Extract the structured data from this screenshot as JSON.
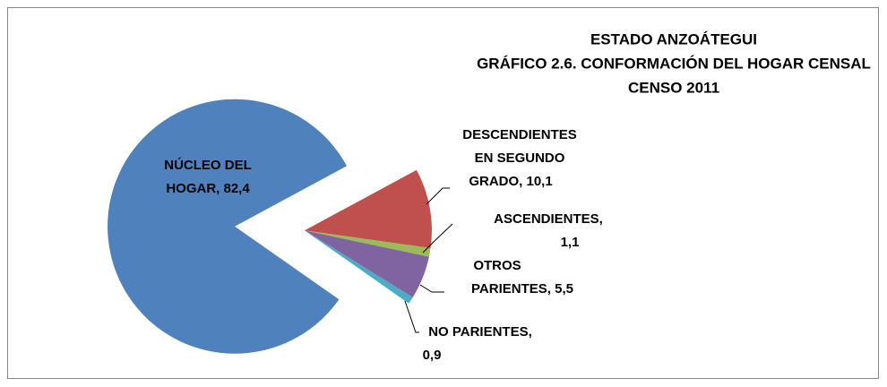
{
  "chart_data": {
    "type": "pie",
    "title": [
      "ESTADO ANZOÁTEGUI",
      "GRÁFICO 2.6. CONFORMACIÓN DEL HOGAR CENSAL",
      "CENSO 2011"
    ],
    "categories": [
      "NÚCLEO DEL HOGAR",
      "DESCENDIENTES EN SEGUNDO GRADO",
      "ASCENDIENTES",
      "OTROS PARIENTES",
      "NO PARIENTES"
    ],
    "values": [
      82.4,
      10.1,
      1.1,
      5.5,
      0.9
    ],
    "data_labels": [
      [
        "NÚCLEO DEL",
        "HOGAR, 82,4"
      ],
      [
        "DESCENDIENTES",
        "EN SEGUNDO",
        "GRADO, 10,1"
      ],
      [
        "ASCENDIENTES,",
        "1,1"
      ],
      [
        "OTROS",
        "PARIENTES, 5,5"
      ],
      [
        "NO PARIENTES,",
        "0,9"
      ]
    ],
    "colors": [
      "#4f81bd",
      "#c0504d",
      "#9bbb59",
      "#8064a2",
      "#4bacc6"
    ],
    "start_angle": 125
  }
}
